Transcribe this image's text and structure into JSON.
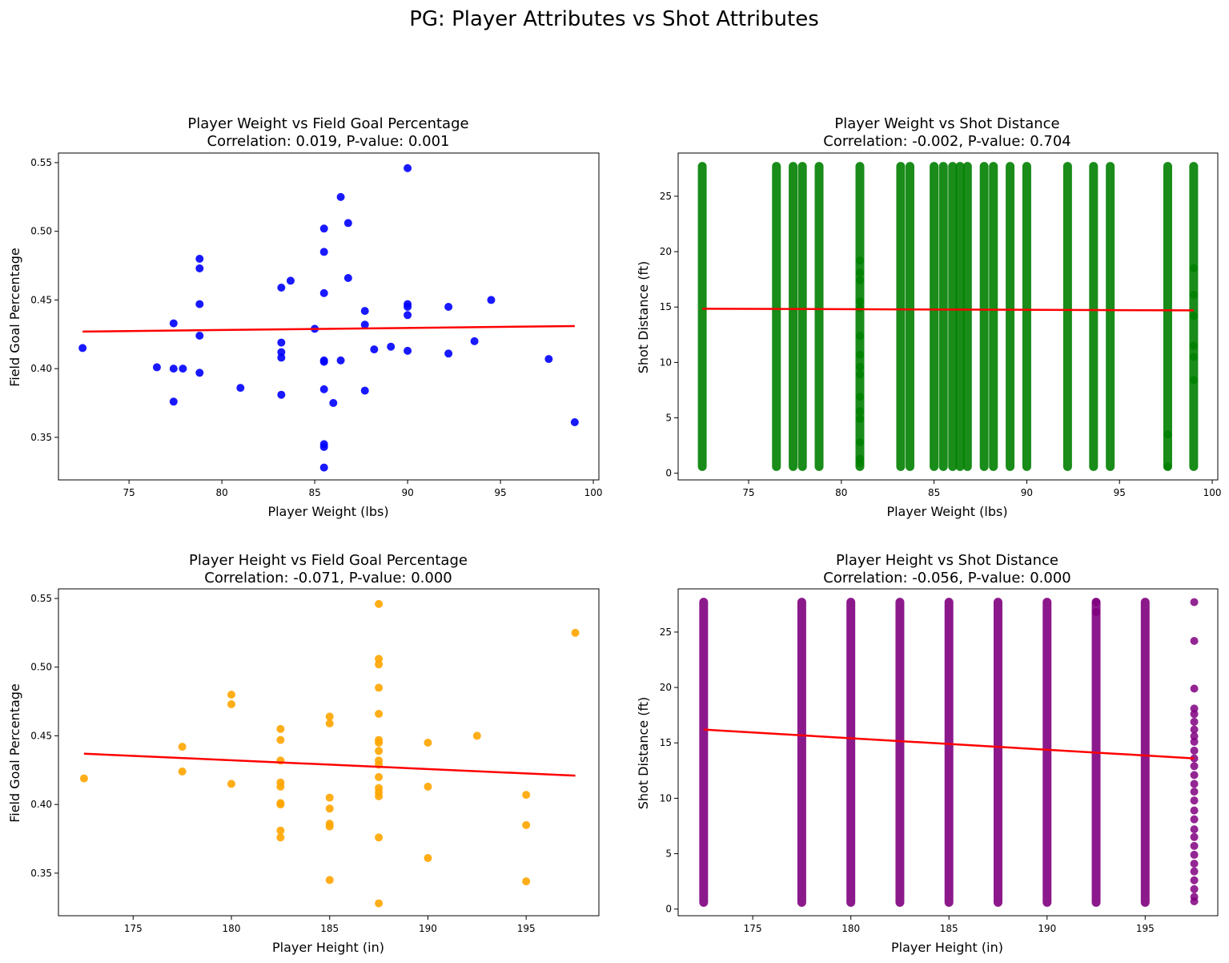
{
  "figure": {
    "title": "PG: Player Attributes vs Shot Attributes"
  },
  "chart_data": [
    {
      "type": "scatter",
      "title": "Player Weight vs Field Goal Percentage",
      "subtitle": "Correlation: 0.019, P-value: 0.001",
      "xlabel": "Player Weight (lbs)",
      "ylabel": "Field Goal Percentage",
      "xlim": [
        71.2,
        100.3
      ],
      "ylim": [
        0.319,
        0.557
      ],
      "xticks": [
        75,
        80,
        85,
        90,
        95,
        100
      ],
      "yticks": [
        0.35,
        0.4,
        0.45,
        0.5,
        0.55
      ],
      "yticks_format": "2dp",
      "color": "#0000ff",
      "regression_color": "#ff0000",
      "regression": {
        "x": [
          72.5,
          99.0
        ],
        "y": [
          0.427,
          0.431
        ]
      },
      "points": [
        [
          72.5,
          0.415
        ],
        [
          76.5,
          0.401
        ],
        [
          77.4,
          0.433
        ],
        [
          77.4,
          0.4
        ],
        [
          77.4,
          0.376
        ],
        [
          77.9,
          0.4
        ],
        [
          78.8,
          0.48
        ],
        [
          78.8,
          0.473
        ],
        [
          78.8,
          0.447
        ],
        [
          78.8,
          0.424
        ],
        [
          78.8,
          0.397
        ],
        [
          81.0,
          0.386
        ],
        [
          83.2,
          0.459
        ],
        [
          83.2,
          0.419
        ],
        [
          83.2,
          0.412
        ],
        [
          83.2,
          0.408
        ],
        [
          83.2,
          0.381
        ],
        [
          83.7,
          0.464
        ],
        [
          85.0,
          0.429
        ],
        [
          85.5,
          0.502
        ],
        [
          85.5,
          0.485
        ],
        [
          85.5,
          0.455
        ],
        [
          85.5,
          0.406
        ],
        [
          85.5,
          0.405
        ],
        [
          85.5,
          0.385
        ],
        [
          85.5,
          0.345
        ],
        [
          85.5,
          0.343
        ],
        [
          85.5,
          0.328
        ],
        [
          86.0,
          0.375
        ],
        [
          86.4,
          0.525
        ],
        [
          86.4,
          0.406
        ],
        [
          86.8,
          0.506
        ],
        [
          86.8,
          0.466
        ],
        [
          87.7,
          0.442
        ],
        [
          87.7,
          0.432
        ],
        [
          87.7,
          0.384
        ],
        [
          88.2,
          0.414
        ],
        [
          89.1,
          0.416
        ],
        [
          90.0,
          0.546
        ],
        [
          90.0,
          0.447
        ],
        [
          90.0,
          0.445
        ],
        [
          90.0,
          0.439
        ],
        [
          90.0,
          0.413
        ],
        [
          92.2,
          0.445
        ],
        [
          92.2,
          0.411
        ],
        [
          93.6,
          0.42
        ],
        [
          94.5,
          0.45
        ],
        [
          97.6,
          0.407
        ],
        [
          99.0,
          0.361
        ]
      ]
    },
    {
      "type": "scatter",
      "title": "Player Weight vs Shot Distance",
      "subtitle": "Correlation: -0.002, P-value: 0.704",
      "xlabel": "Player Weight (lbs)",
      "ylabel": "Shot Distance (ft)",
      "xlim": [
        71.2,
        100.3
      ],
      "ylim": [
        -0.6,
        28.9
      ],
      "xticks": [
        75,
        80,
        85,
        90,
        95,
        100
      ],
      "yticks": [
        0,
        5,
        10,
        15,
        20,
        25
      ],
      "yticks_format": "int",
      "color": "#008000",
      "regression_color": "#ff0000",
      "regression": {
        "x": [
          72.5,
          99.0
        ],
        "y": [
          14.85,
          14.7
        ]
      },
      "column_min": 0.6,
      "column_max": 27.7,
      "columns": [
        72.5,
        76.5,
        77.4,
        77.9,
        78.8,
        81.0,
        83.2,
        83.7,
        85.0,
        85.5,
        86.0,
        86.4,
        86.8,
        87.7,
        88.2,
        89.1,
        90.0,
        92.2,
        93.6,
        94.5,
        97.6,
        99.0
      ],
      "sparse_points": [
        [
          81.0,
          0.9
        ],
        [
          81.0,
          1.3
        ],
        [
          81.0,
          2.8
        ],
        [
          81.0,
          4.9
        ],
        [
          81.0,
          5.6
        ],
        [
          81.0,
          6.9
        ],
        [
          81.0,
          8.9
        ],
        [
          81.0,
          9.6
        ],
        [
          81.0,
          10.7
        ],
        [
          81.0,
          12.4
        ],
        [
          81.0,
          14.9
        ],
        [
          81.0,
          15.5
        ],
        [
          81.0,
          17.4
        ],
        [
          81.0,
          18.1
        ],
        [
          81.0,
          19.2
        ],
        [
          99.0,
          8.4
        ],
        [
          99.0,
          10.5
        ],
        [
          99.0,
          11.5
        ],
        [
          99.0,
          14.2
        ],
        [
          99.0,
          16.1
        ],
        [
          99.0,
          18.5
        ],
        [
          97.6,
          0.6
        ],
        [
          97.6,
          3.5
        ]
      ]
    },
    {
      "type": "scatter",
      "title": "Player Height vs Field Goal Percentage",
      "subtitle": "Correlation: -0.071, P-value: 0.000",
      "xlabel": "Player Height (in)",
      "ylabel": "Field Goal Percentage",
      "xlim": [
        171.2,
        198.7
      ],
      "ylim": [
        0.319,
        0.557
      ],
      "xticks": [
        175,
        180,
        185,
        190,
        195
      ],
      "yticks": [
        0.35,
        0.4,
        0.45,
        0.5,
        0.55
      ],
      "yticks_format": "2dp",
      "color": "#ffa500",
      "regression_color": "#ff0000",
      "regression": {
        "x": [
          172.5,
          197.5
        ],
        "y": [
          0.437,
          0.421
        ]
      },
      "points": [
        [
          172.5,
          0.419
        ],
        [
          177.5,
          0.442
        ],
        [
          177.5,
          0.424
        ],
        [
          180.0,
          0.48
        ],
        [
          180.0,
          0.473
        ],
        [
          180.0,
          0.415
        ],
        [
          182.5,
          0.455
        ],
        [
          182.5,
          0.447
        ],
        [
          182.5,
          0.432
        ],
        [
          182.5,
          0.416
        ],
        [
          182.5,
          0.413
        ],
        [
          182.5,
          0.401
        ],
        [
          182.5,
          0.4
        ],
        [
          182.5,
          0.381
        ],
        [
          182.5,
          0.376
        ],
        [
          185.0,
          0.464
        ],
        [
          185.0,
          0.459
        ],
        [
          185.0,
          0.405
        ],
        [
          185.0,
          0.397
        ],
        [
          185.0,
          0.386
        ],
        [
          185.0,
          0.384
        ],
        [
          185.0,
          0.345
        ],
        [
          187.5,
          0.546
        ],
        [
          187.5,
          0.506
        ],
        [
          187.5,
          0.502
        ],
        [
          187.5,
          0.485
        ],
        [
          187.5,
          0.466
        ],
        [
          187.5,
          0.447
        ],
        [
          187.5,
          0.445
        ],
        [
          187.5,
          0.439
        ],
        [
          187.5,
          0.432
        ],
        [
          187.5,
          0.429
        ],
        [
          187.5,
          0.42
        ],
        [
          187.5,
          0.412
        ],
        [
          187.5,
          0.409
        ],
        [
          187.5,
          0.406
        ],
        [
          187.5,
          0.376
        ],
        [
          187.5,
          0.328
        ],
        [
          190.0,
          0.445
        ],
        [
          190.0,
          0.413
        ],
        [
          190.0,
          0.361
        ],
        [
          192.5,
          0.45
        ],
        [
          195.0,
          0.407
        ],
        [
          195.0,
          0.385
        ],
        [
          195.0,
          0.344
        ],
        [
          197.5,
          0.525
        ]
      ]
    },
    {
      "type": "scatter",
      "title": "Player Height vs Shot Distance",
      "subtitle": "Correlation: -0.056, P-value: 0.000",
      "xlabel": "Player Height (in)",
      "ylabel": "Shot Distance (ft)",
      "xlim": [
        171.2,
        198.7
      ],
      "ylim": [
        -0.6,
        28.9
      ],
      "xticks": [
        175,
        180,
        185,
        190,
        195
      ],
      "yticks": [
        0,
        5,
        10,
        15,
        20,
        25
      ],
      "yticks_format": "int",
      "color": "#800080",
      "regression_color": "#ff0000",
      "regression": {
        "x": [
          172.5,
          197.5
        ],
        "y": [
          16.2,
          13.6
        ]
      },
      "column_min": 0.6,
      "column_max": 27.7,
      "columns": [
        172.5,
        177.5,
        180.0,
        182.5,
        185.0,
        187.5,
        190.0,
        192.5,
        195.0
      ],
      "sparse_points": [
        [
          197.5,
          27.7
        ],
        [
          197.5,
          24.2
        ],
        [
          197.5,
          19.9
        ],
        [
          197.5,
          18.1
        ],
        [
          197.5,
          17.6
        ],
        [
          197.5,
          16.9
        ],
        [
          197.5,
          16.2
        ],
        [
          197.5,
          15.6
        ],
        [
          197.5,
          15.1
        ],
        [
          197.5,
          14.3
        ],
        [
          197.5,
          13.6
        ],
        [
          197.5,
          12.9
        ],
        [
          197.5,
          12.1
        ],
        [
          197.5,
          11.3
        ],
        [
          197.5,
          10.6
        ],
        [
          197.5,
          9.8
        ],
        [
          197.5,
          8.9
        ],
        [
          197.5,
          8.1
        ],
        [
          197.5,
          7.2
        ],
        [
          197.5,
          6.5
        ],
        [
          197.5,
          5.7
        ],
        [
          197.5,
          4.9
        ],
        [
          197.5,
          4.1
        ],
        [
          197.5,
          3.4
        ],
        [
          197.5,
          2.6
        ],
        [
          197.5,
          1.8
        ],
        [
          197.5,
          1.1
        ],
        [
          197.5,
          0.7
        ],
        [
          192.5,
          27.7
        ],
        [
          192.5,
          26.8
        ]
      ]
    }
  ]
}
